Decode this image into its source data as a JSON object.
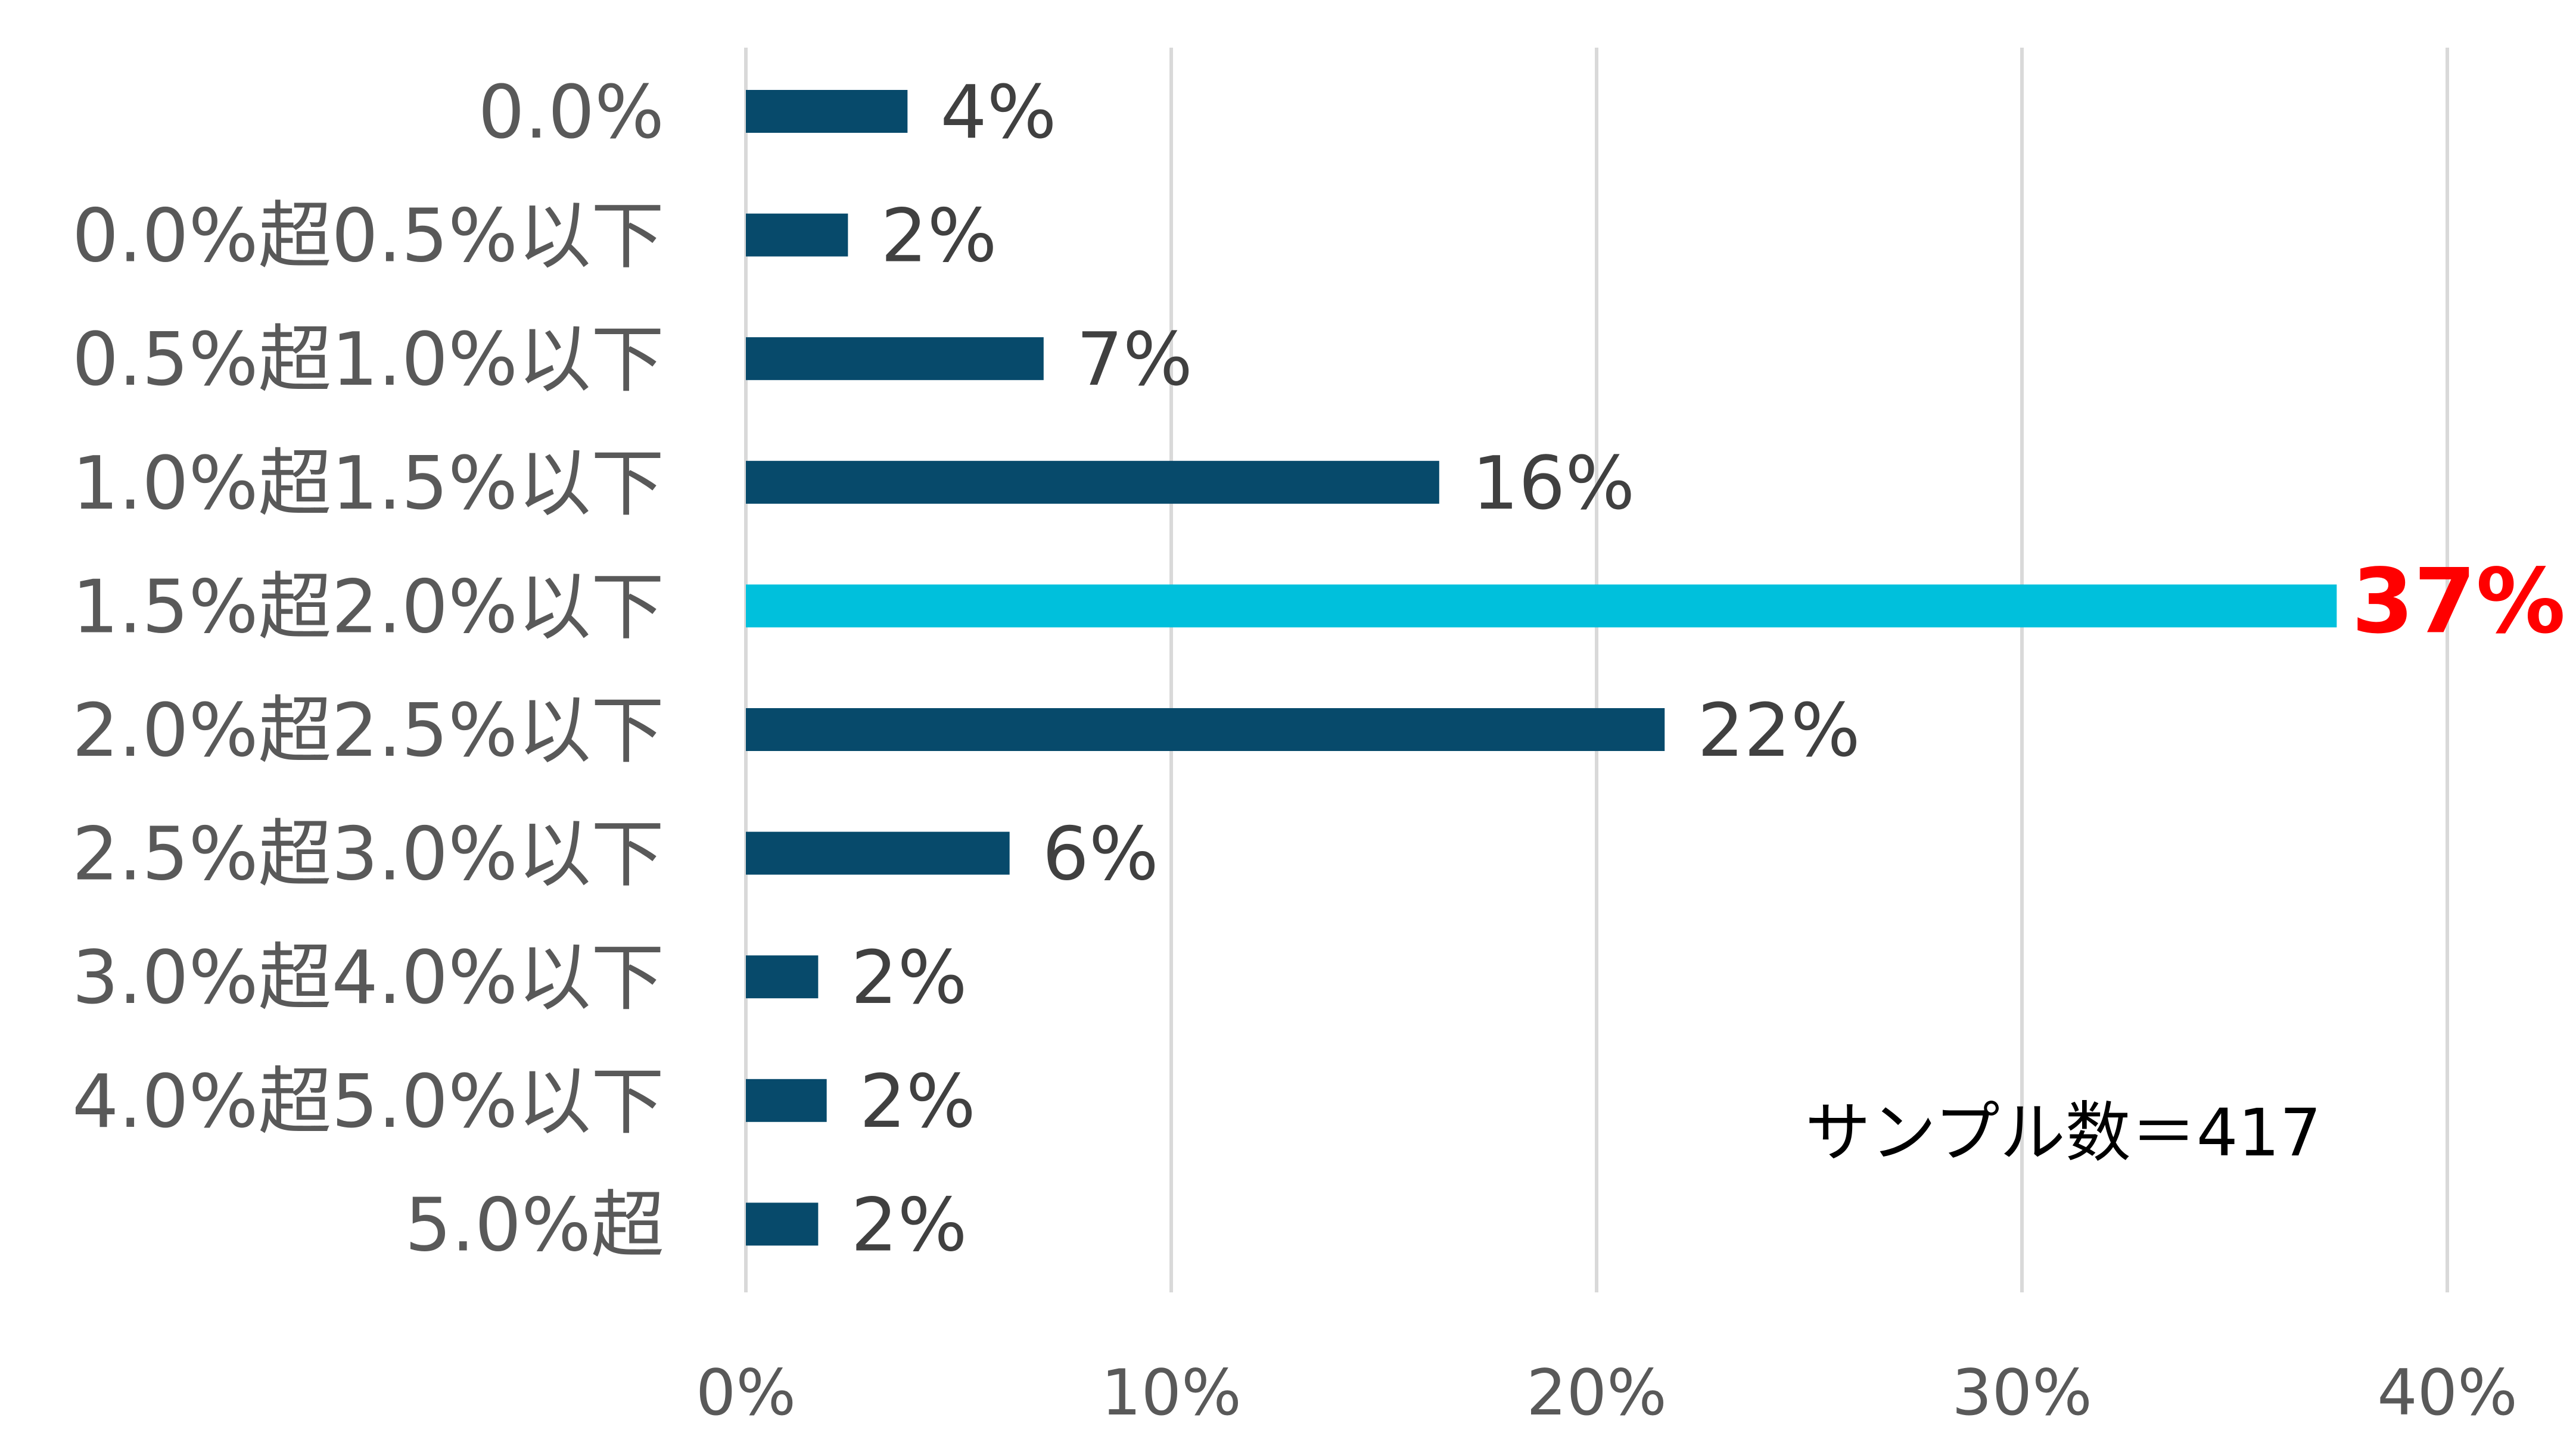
{
  "chart_data": {
    "type": "bar",
    "orientation": "horizontal",
    "categories": [
      "0.0%",
      "0.0%超0.5%以下",
      "0.5%超1.0%以下",
      "1.0%超1.5%以下",
      "1.5%超2.0%以下",
      "2.0%超2.5%以下",
      "2.5%超3.0%以下",
      "3.0%超4.0%以下",
      "4.0%超5.0%以下",
      "5.0%超"
    ],
    "values": [
      3.8,
      2.4,
      7.0,
      16.3,
      37.4,
      21.6,
      6.2,
      1.7,
      1.9,
      1.7
    ],
    "data_labels": [
      "4%",
      "2%",
      "7%",
      "16%",
      "37%",
      "22%",
      "6%",
      "2%",
      "2%",
      "2%"
    ],
    "highlight_index": 4,
    "xlim": [
      0,
      40
    ],
    "xticks": [
      0,
      10,
      20,
      30,
      40
    ],
    "xtick_labels": [
      "0%",
      "10%",
      "20%",
      "30%",
      "40%"
    ],
    "grid": "vertical",
    "colors": {
      "bar": "#074a6b",
      "highlight_bar": "#00c0dc",
      "highlight_label": "#ff0000"
    },
    "annotation": "サンプル数＝417"
  }
}
